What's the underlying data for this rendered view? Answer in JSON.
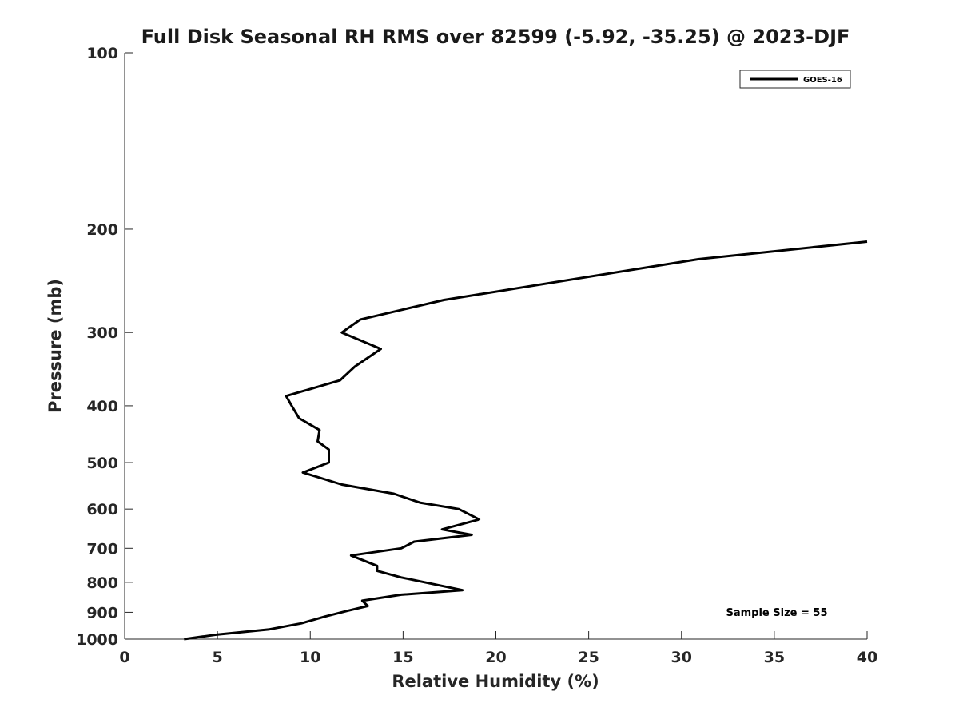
{
  "chart_data": {
    "type": "line",
    "title": "Full Disk Seasonal RH RMS over 82599 (-5.92, -35.25) @ 2023-DJF",
    "xlabel": "Relative Humidity (%)",
    "ylabel": "Pressure (mb)",
    "xlim": [
      0,
      40
    ],
    "ylim": [
      100,
      1000
    ],
    "y_scale": "log",
    "y_inverted": true,
    "x_ticks": [
      "0",
      "5",
      "10",
      "15",
      "20",
      "25",
      "30",
      "35",
      "40"
    ],
    "y_ticks": [
      "100",
      "200",
      "300",
      "400",
      "500",
      "600",
      "700",
      "800",
      "900",
      "1000"
    ],
    "grid": false,
    "legend": {
      "position": "top-right",
      "entries": [
        "GOES-16"
      ]
    },
    "annotation": "Sample Size = 55",
    "series": [
      {
        "name": "GOES-16",
        "color": "#000000",
        "points": [
          [
            40.0,
            210
          ],
          [
            30.9,
            225
          ],
          [
            17.2,
            264
          ],
          [
            12.7,
            285
          ],
          [
            11.7,
            300
          ],
          [
            13.8,
            320
          ],
          [
            12.4,
            343
          ],
          [
            11.6,
            362
          ],
          [
            8.7,
            385
          ],
          [
            9.0,
            400
          ],
          [
            9.4,
            420
          ],
          [
            10.5,
            440
          ],
          [
            10.4,
            460
          ],
          [
            11.0,
            475
          ],
          [
            11.0,
            500
          ],
          [
            9.6,
            520
          ],
          [
            11.7,
            545
          ],
          [
            14.5,
            565
          ],
          [
            15.9,
            585
          ],
          [
            18.0,
            600
          ],
          [
            19.1,
            625
          ],
          [
            17.1,
            650
          ],
          [
            18.7,
            664
          ],
          [
            15.6,
            682
          ],
          [
            14.9,
            700
          ],
          [
            12.2,
            720
          ],
          [
            13.6,
            750
          ],
          [
            13.6,
            765
          ],
          [
            14.9,
            785
          ],
          [
            18.2,
            825
          ],
          [
            14.9,
            840
          ],
          [
            12.8,
            860
          ],
          [
            13.1,
            878
          ],
          [
            12.0,
            895
          ],
          [
            10.8,
            915
          ],
          [
            9.5,
            940
          ],
          [
            7.8,
            962
          ],
          [
            5.0,
            982
          ],
          [
            3.2,
            1000
          ]
        ]
      }
    ]
  }
}
